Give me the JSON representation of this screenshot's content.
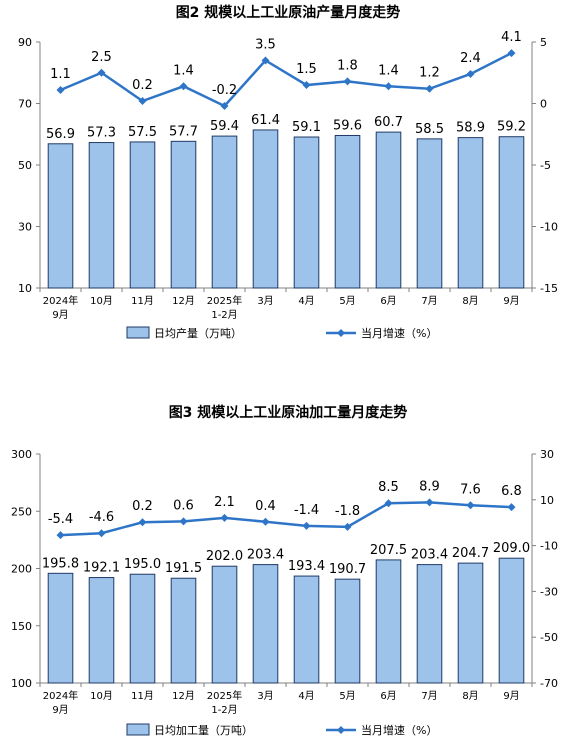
{
  "chart_data": [
    {
      "type": "bar",
      "title": "图2  规模以上工业原油产量月度走势",
      "categories": [
        "2024年\n9月",
        "10月",
        "11月",
        "12月",
        "2025年\n1-2月",
        "3月",
        "4月",
        "5月",
        "6月",
        "7月",
        "8月",
        "9月"
      ],
      "ylim": [
        10,
        90
      ],
      "yticks": [
        10,
        30,
        50,
        70,
        90
      ],
      "y2lim": [
        -15,
        5
      ],
      "y2ticks": [
        -15,
        -10,
        -5,
        0,
        5
      ],
      "series": [
        {
          "name": "日均产量（万吨）",
          "type": "bar",
          "axis": "left",
          "values": [
            56.9,
            57.3,
            57.5,
            57.7,
            59.4,
            61.4,
            59.1,
            59.6,
            60.7,
            58.5,
            58.9,
            59.2
          ],
          "labels": [
            "56.9",
            "57.3",
            "57.5",
            "57.7",
            "59.4",
            "61.4",
            "59.1",
            "59.6",
            "60.7",
            "58.5",
            "58.9",
            "59.2"
          ]
        },
        {
          "name": "当月增速（%）",
          "type": "line",
          "axis": "right",
          "values": [
            1.1,
            2.5,
            0.2,
            1.4,
            -0.2,
            3.5,
            1.5,
            1.8,
            1.4,
            1.2,
            2.4,
            4.1
          ],
          "labels": [
            "1.1",
            "2.5",
            "0.2",
            "1.4",
            "-0.2",
            "3.5",
            "1.5",
            "1.8",
            "1.4",
            "1.2",
            "2.4",
            "4.1"
          ]
        }
      ],
      "colors": {
        "bar_fill": "#9dc3ea",
        "bar_stroke": "#1f3a66",
        "line": "#2e75c8",
        "axis": "#808080"
      },
      "legend_position": "bottom"
    },
    {
      "type": "bar",
      "title": "图3  规模以上工业原油加工量月度走势",
      "categories": [
        "2024年\n9月",
        "10月",
        "11月",
        "12月",
        "2025年\n1-2月",
        "3月",
        "4月",
        "5月",
        "6月",
        "7月",
        "8月",
        "9月"
      ],
      "ylim": [
        100,
        300
      ],
      "yticks": [
        100,
        150,
        200,
        250,
        300
      ],
      "y2lim": [
        -70,
        30
      ],
      "y2ticks": [
        -70,
        -50,
        -30,
        -10,
        10,
        30
      ],
      "series": [
        {
          "name": "日均加工量（万吨）",
          "type": "bar",
          "axis": "left",
          "values": [
            195.8,
            192.1,
            195.0,
            191.5,
            202.0,
            203.4,
            193.4,
            190.7,
            207.5,
            203.4,
            204.7,
            209.0
          ],
          "labels": [
            "195.8",
            "192.1",
            "195.0",
            "191.5",
            "202.0",
            "203.4",
            "193.4",
            "190.7",
            "207.5",
            "203.4",
            "204.7",
            "209.0"
          ]
        },
        {
          "name": "当月增速（%）",
          "type": "line",
          "axis": "right",
          "values": [
            -5.4,
            -4.6,
            0.2,
            0.6,
            2.1,
            0.4,
            -1.4,
            -1.8,
            8.5,
            8.9,
            7.6,
            6.8
          ],
          "labels": [
            "-5.4",
            "-4.6",
            "0.2",
            "0.6",
            "2.1",
            "0.4",
            "-1.4",
            "-1.8",
            "8.5",
            "8.9",
            "7.6",
            "6.8"
          ]
        }
      ],
      "colors": {
        "bar_fill": "#9dc3ea",
        "bar_stroke": "#1f3a66",
        "line": "#2e75c8",
        "axis": "#808080"
      },
      "legend_position": "bottom"
    }
  ]
}
